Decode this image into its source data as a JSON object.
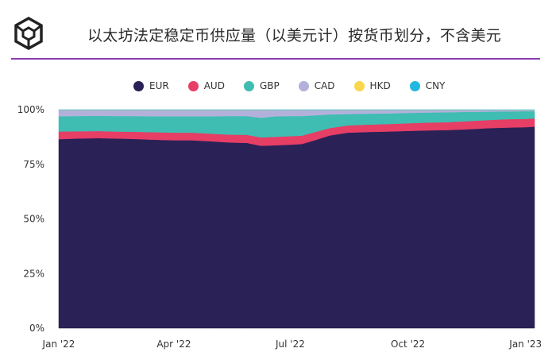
{
  "header": {
    "title": "以太坊法定稳定币供应量（以美元计）按货币划分，不含美元"
  },
  "colors": {
    "EUR": "#2a2157",
    "AUD": "#e63e65",
    "GBP": "#3fbdb2",
    "CAD": "#b3b1dc",
    "HKD": "#f8d74d",
    "CNY": "#20b8e0",
    "accent": "#8a3fb0"
  },
  "chart_data": {
    "type": "area",
    "stacked": true,
    "normalized": true,
    "x_labels": [
      "Jan '22",
      "Apr '22",
      "Jul '22",
      "Oct '22",
      "Jan '23"
    ],
    "y_ticks": [
      "0%",
      "25%",
      "50%",
      "75%",
      "100%"
    ],
    "ylim": [
      0,
      100
    ],
    "legend_position": "top",
    "x": [
      "2022-01-01",
      "2022-01-15",
      "2022-02-01",
      "2022-02-15",
      "2022-03-01",
      "2022-03-15",
      "2022-04-01",
      "2022-04-15",
      "2022-05-01",
      "2022-05-15",
      "2022-05-28",
      "2022-06-08",
      "2022-06-20",
      "2022-07-01",
      "2022-07-10",
      "2022-07-20",
      "2022-08-01",
      "2022-08-15",
      "2022-09-01",
      "2022-09-15",
      "2022-10-01",
      "2022-10-15",
      "2022-11-01",
      "2022-11-15",
      "2022-12-01",
      "2022-12-15",
      "2023-01-01",
      "2023-01-08"
    ],
    "series": [
      {
        "name": "EUR",
        "values": [
          86.5,
          86.8,
          87.0,
          86.8,
          86.6,
          86.3,
          86.0,
          86.0,
          85.5,
          85.0,
          84.8,
          83.5,
          83.7,
          84.0,
          84.3,
          86.0,
          88.2,
          89.5,
          89.8,
          90.0,
          90.3,
          90.5,
          90.7,
          91.0,
          91.5,
          91.8,
          92.0,
          92.2
        ]
      },
      {
        "name": "AUD",
        "values": [
          3.5,
          3.3,
          3.2,
          3.2,
          3.3,
          3.4,
          3.5,
          3.5,
          3.5,
          3.6,
          3.7,
          3.8,
          3.9,
          3.9,
          3.8,
          3.7,
          3.4,
          3.3,
          3.4,
          3.4,
          3.5,
          3.6,
          3.6,
          3.7,
          3.7,
          3.8,
          3.8,
          3.8
        ]
      },
      {
        "name": "GBP",
        "values": [
          7.0,
          7.0,
          7.0,
          7.1,
          7.2,
          7.3,
          7.5,
          7.5,
          8.0,
          8.5,
          8.6,
          9.0,
          9.4,
          9.2,
          9.0,
          7.7,
          6.2,
          5.2,
          5.0,
          4.9,
          4.7,
          4.6,
          4.5,
          4.3,
          3.9,
          3.6,
          3.5,
          3.3
        ]
      },
      {
        "name": "CAD",
        "values": [
          2.8,
          2.7,
          2.6,
          2.7,
          2.7,
          2.8,
          2.8,
          2.8,
          2.8,
          2.7,
          2.7,
          3.5,
          2.8,
          2.7,
          2.7,
          2.4,
          2.0,
          1.8,
          1.6,
          1.5,
          1.3,
          1.1,
          1.0,
          0.8,
          0.7,
          0.6,
          0.5,
          0.5
        ]
      },
      {
        "name": "HKD",
        "values": [
          0.1,
          0.1,
          0.1,
          0.1,
          0.1,
          0.1,
          0.1,
          0.1,
          0.1,
          0.1,
          0.1,
          0.1,
          0.1,
          0.1,
          0.1,
          0.1,
          0.1,
          0.1,
          0.1,
          0.1,
          0.1,
          0.1,
          0.1,
          0.1,
          0.1,
          0.1,
          0.1,
          0.1
        ]
      },
      {
        "name": "CNY",
        "values": [
          0.1,
          0.1,
          0.1,
          0.1,
          0.1,
          0.1,
          0.1,
          0.1,
          0.1,
          0.1,
          0.1,
          0.1,
          0.1,
          0.1,
          0.1,
          0.1,
          0.1,
          0.1,
          0.1,
          0.1,
          0.1,
          0.1,
          0.1,
          0.1,
          0.1,
          0.1,
          0.1,
          0.1
        ]
      }
    ]
  }
}
